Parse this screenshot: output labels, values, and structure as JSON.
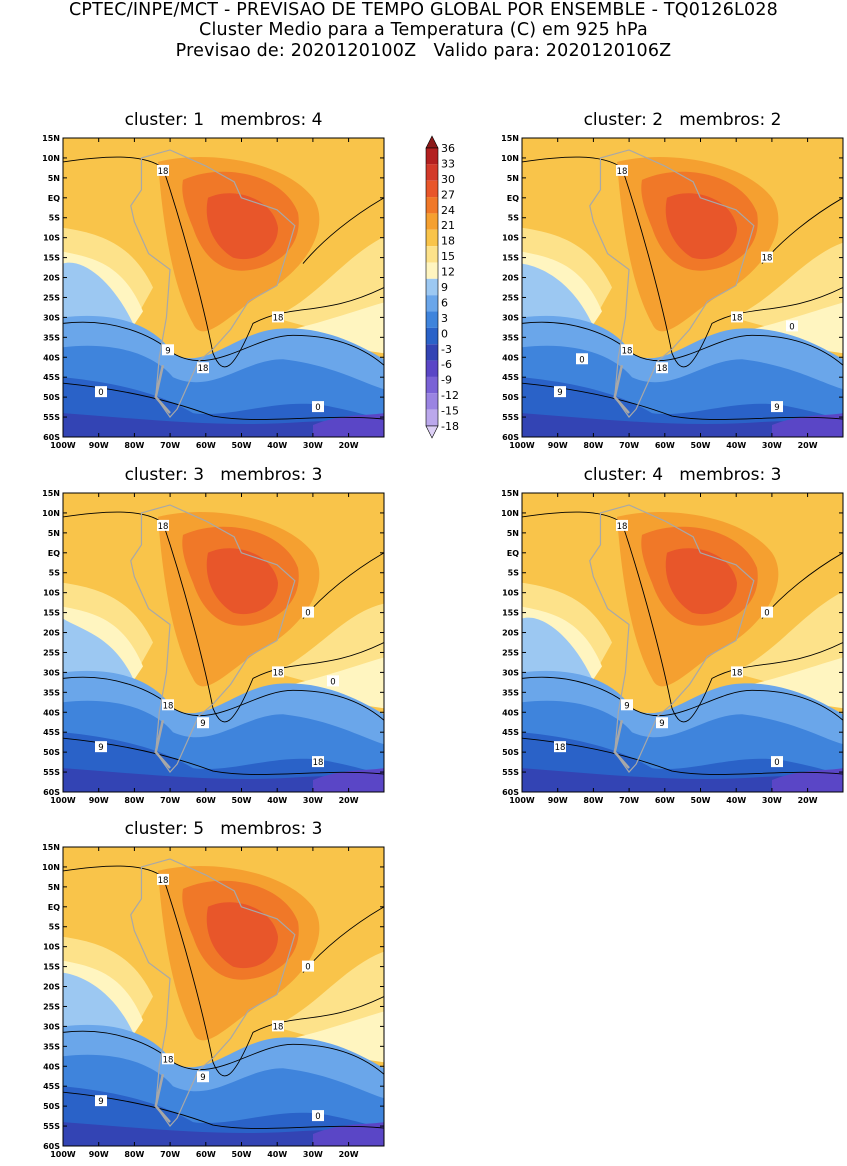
{
  "title": {
    "line1": "CPTEC/INPE/MCT - PREVISAO DE TEMPO GLOBAL POR ENSEMBLE - TQ0126L028",
    "line2": "Cluster Medio para a Temperatura (C) em 925 hPa",
    "line3": "Previsao de: 2020120100Z   Valido para: 2020120106Z"
  },
  "lat_labels": [
    "15N",
    "10N",
    "5N",
    "EQ",
    "5S",
    "10S",
    "15S",
    "20S",
    "25S",
    "30S",
    "35S",
    "40S",
    "45S",
    "50S",
    "55S",
    "60S"
  ],
  "lon_labels": [
    "100W",
    "90W",
    "80W",
    "70W",
    "60W",
    "50W",
    "40W",
    "30W",
    "20W"
  ],
  "colorbar": {
    "levels": [
      "36",
      "33",
      "30",
      "27",
      "24",
      "21",
      "18",
      "15",
      "12",
      "9",
      "6",
      "3",
      "0",
      "-3",
      "-6",
      "-9",
      "-12",
      "-15",
      "-18"
    ],
    "colors": [
      "#8b1a1a",
      "#b32020",
      "#d33a2a",
      "#e8562a",
      "#f07828",
      "#f5a030",
      "#f9c44a",
      "#fde28a",
      "#fff5c0",
      "#9cc8f2",
      "#6aa6ea",
      "#3f84dc",
      "#2a62c8",
      "#3344b4",
      "#5a46c6",
      "#7a62d6",
      "#9a84e2",
      "#bba8ec",
      "#ddd0f6"
    ]
  },
  "panels": [
    {
      "title": "cluster: 1   membros: 4",
      "contour_labels": [
        "18",
        "18",
        "9",
        "18",
        "0",
        "0"
      ]
    },
    {
      "title": "cluster: 2   membros: 2",
      "contour_labels": [
        "18",
        "18",
        "18",
        "18",
        "9",
        "9",
        "18",
        "0",
        "0"
      ]
    },
    {
      "title": "cluster: 3   membros: 3",
      "contour_labels": [
        "18",
        "18",
        "18",
        "9",
        "9",
        "18",
        "0",
        "0"
      ]
    },
    {
      "title": "cluster: 4   membros: 3",
      "contour_labels": [
        "18",
        "18",
        "9",
        "9",
        "18",
        "0",
        "0"
      ]
    },
    {
      "title": "cluster: 5   membros: 3",
      "contour_labels": [
        "18",
        "18",
        "18",
        "9",
        "9",
        "0",
        "0"
      ]
    }
  ]
}
